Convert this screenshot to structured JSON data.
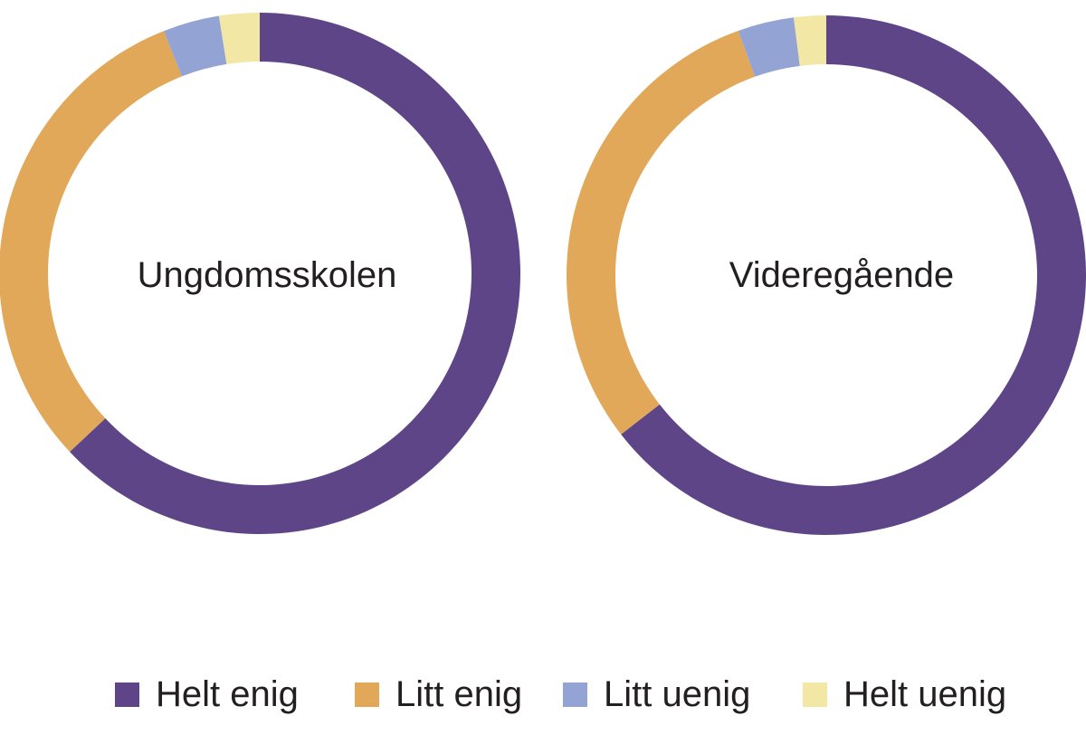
{
  "chart_data": [
    {
      "type": "pie",
      "variant": "donut",
      "center_label": "Ungdomsskolen",
      "categories": [
        "Helt enig",
        "Litt enig",
        "Litt uenig",
        "Helt uenig"
      ],
      "values": [
        63,
        31,
        3.5,
        2.5
      ],
      "unit": "%"
    },
    {
      "type": "pie",
      "variant": "donut",
      "center_label": "Videregående",
      "categories": [
        "Helt enig",
        "Litt enig",
        "Litt uenig",
        "Helt uenig"
      ],
      "values": [
        64.5,
        30,
        3.5,
        2
      ],
      "unit": "%"
    }
  ],
  "legend": {
    "placement": "bottom",
    "items": [
      {
        "label": "Helt enig",
        "color": "#5e4588"
      },
      {
        "label": "Litt enig",
        "color": "#e2a85a"
      },
      {
        "label": "Litt uenig",
        "color": "#93a3d4"
      },
      {
        "label": "Helt uenig",
        "color": "#f2e7a5"
      }
    ]
  }
}
